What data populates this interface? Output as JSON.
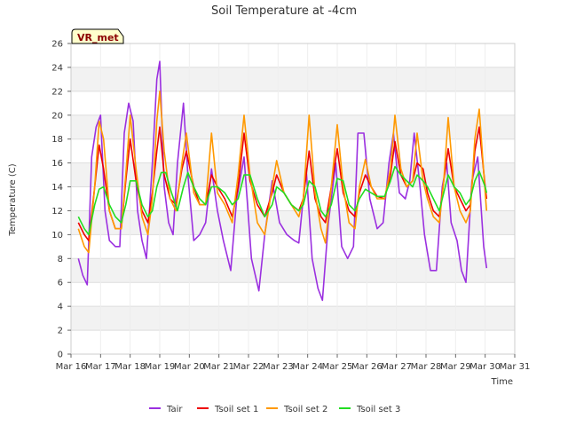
{
  "chart_data": {
    "type": "line",
    "title": "Soil Temperature at -4cm",
    "xlabel": "Time",
    "ylabel": "Temperature (C)",
    "badge": "VR_met",
    "xlim": [
      0,
      15
    ],
    "ylim": [
      0,
      26
    ],
    "grid": "horizontal bands",
    "legend": "bottom",
    "x_ticks": [
      "Mar 16",
      "Mar 17",
      "Mar 18",
      "Mar 19",
      "Mar 20",
      "Mar 21",
      "Mar 22",
      "Mar 23",
      "Mar 24",
      "Mar 25",
      "Mar 26",
      "Mar 27",
      "Mar 28",
      "Mar 29",
      "Mar 30",
      "Mar 31"
    ],
    "y_ticks": [
      0,
      2,
      4,
      6,
      8,
      10,
      12,
      14,
      16,
      18,
      20,
      22,
      24,
      26
    ],
    "series": [
      {
        "name": "Tair",
        "color": "#9b30e0",
        "points": [
          [
            0.25,
            8
          ],
          [
            0.4,
            6.6
          ],
          [
            0.55,
            5.8
          ],
          [
            0.7,
            16.5
          ],
          [
            0.85,
            19
          ],
          [
            1.0,
            20
          ],
          [
            1.15,
            12
          ],
          [
            1.3,
            9.5
          ],
          [
            1.5,
            9
          ],
          [
            1.65,
            9
          ],
          [
            1.8,
            18.5
          ],
          [
            1.95,
            21
          ],
          [
            2.1,
            19.5
          ],
          [
            2.25,
            12
          ],
          [
            2.4,
            9.5
          ],
          [
            2.55,
            8
          ],
          [
            2.75,
            16
          ],
          [
            2.9,
            23
          ],
          [
            3.0,
            24.5
          ],
          [
            3.15,
            14
          ],
          [
            3.3,
            11
          ],
          [
            3.45,
            10
          ],
          [
            3.6,
            16
          ],
          [
            3.8,
            21
          ],
          [
            3.95,
            15
          ],
          [
            4.15,
            9.5
          ],
          [
            4.35,
            10
          ],
          [
            4.55,
            11
          ],
          [
            4.75,
            15.5
          ],
          [
            4.95,
            12
          ],
          [
            5.15,
            9.5
          ],
          [
            5.4,
            7
          ],
          [
            5.6,
            13
          ],
          [
            5.85,
            16.5
          ],
          [
            6.1,
            8
          ],
          [
            6.35,
            5.3
          ],
          [
            6.55,
            10
          ],
          [
            6.8,
            14.5
          ],
          [
            7.05,
            11
          ],
          [
            7.3,
            10
          ],
          [
            7.55,
            9.5
          ],
          [
            7.7,
            9.3
          ],
          [
            7.95,
            15.5
          ],
          [
            8.15,
            8
          ],
          [
            8.35,
            5.5
          ],
          [
            8.5,
            4.5
          ],
          [
            8.7,
            11
          ],
          [
            8.95,
            16
          ],
          [
            9.15,
            9
          ],
          [
            9.35,
            8
          ],
          [
            9.55,
            9
          ],
          [
            9.7,
            18.5
          ],
          [
            9.9,
            18.5
          ],
          [
            10.1,
            13
          ],
          [
            10.35,
            10.5
          ],
          [
            10.55,
            11
          ],
          [
            10.75,
            16
          ],
          [
            10.9,
            18.5
          ],
          [
            11.1,
            13.5
          ],
          [
            11.3,
            13
          ],
          [
            11.45,
            14.5
          ],
          [
            11.6,
            18.5
          ],
          [
            11.8,
            14
          ],
          [
            11.95,
            10
          ],
          [
            12.15,
            7
          ],
          [
            12.35,
            7
          ],
          [
            12.55,
            14
          ],
          [
            12.7,
            16
          ],
          [
            12.85,
            11
          ],
          [
            13.05,
            9.5
          ],
          [
            13.2,
            7
          ],
          [
            13.35,
            6
          ],
          [
            13.55,
            14.5
          ],
          [
            13.75,
            16.5
          ],
          [
            13.95,
            9
          ],
          [
            14.05,
            7.2
          ]
        ]
      },
      {
        "name": "Tsoil set 1",
        "color": "#ee0000",
        "points": [
          [
            0.25,
            11
          ],
          [
            0.45,
            10
          ],
          [
            0.6,
            9.5
          ],
          [
            0.8,
            14
          ],
          [
            0.95,
            17.5
          ],
          [
            1.1,
            15.5
          ],
          [
            1.3,
            12
          ],
          [
            1.5,
            10.5
          ],
          [
            1.7,
            10.5
          ],
          [
            1.85,
            14.5
          ],
          [
            2.0,
            18
          ],
          [
            2.2,
            14.5
          ],
          [
            2.4,
            12
          ],
          [
            2.6,
            11
          ],
          [
            2.75,
            13.5
          ],
          [
            2.9,
            17
          ],
          [
            3.0,
            19
          ],
          [
            3.15,
            15
          ],
          [
            3.35,
            13
          ],
          [
            3.55,
            12.5
          ],
          [
            3.75,
            15.5
          ],
          [
            3.9,
            17
          ],
          [
            4.15,
            14
          ],
          [
            4.35,
            12.5
          ],
          [
            4.55,
            12.5
          ],
          [
            4.75,
            15
          ],
          [
            4.95,
            14
          ],
          [
            5.2,
            13
          ],
          [
            5.45,
            11.5
          ],
          [
            5.65,
            14
          ],
          [
            5.85,
            18.5
          ],
          [
            6.05,
            14.5
          ],
          [
            6.3,
            12.5
          ],
          [
            6.55,
            11.5
          ],
          [
            6.8,
            13.5
          ],
          [
            6.95,
            15
          ],
          [
            7.2,
            13.5
          ],
          [
            7.45,
            12.5
          ],
          [
            7.7,
            12
          ],
          [
            7.85,
            13
          ],
          [
            8.05,
            17
          ],
          [
            8.25,
            13
          ],
          [
            8.45,
            11.5
          ],
          [
            8.6,
            11
          ],
          [
            8.8,
            14
          ],
          [
            9.0,
            17.2
          ],
          [
            9.2,
            13.5
          ],
          [
            9.4,
            12
          ],
          [
            9.6,
            11.5
          ],
          [
            9.75,
            13.5
          ],
          [
            9.95,
            15
          ],
          [
            10.15,
            14
          ],
          [
            10.35,
            13.2
          ],
          [
            10.6,
            13
          ],
          [
            10.8,
            15
          ],
          [
            10.95,
            17.8
          ],
          [
            11.15,
            15
          ],
          [
            11.35,
            14
          ],
          [
            11.55,
            14.5
          ],
          [
            11.7,
            16
          ],
          [
            11.9,
            15.5
          ],
          [
            12.05,
            13.5
          ],
          [
            12.25,
            12
          ],
          [
            12.45,
            11.5
          ],
          [
            12.6,
            14.5
          ],
          [
            12.75,
            17.2
          ],
          [
            12.95,
            14
          ],
          [
            13.15,
            13
          ],
          [
            13.35,
            12
          ],
          [
            13.5,
            12.5
          ],
          [
            13.65,
            17
          ],
          [
            13.8,
            19
          ],
          [
            14.0,
            14
          ],
          [
            14.05,
            13
          ]
        ]
      },
      {
        "name": "Tsoil set 2",
        "color": "#ff9900",
        "points": [
          [
            0.25,
            10.5
          ],
          [
            0.45,
            9
          ],
          [
            0.6,
            8.5
          ],
          [
            0.8,
            14
          ],
          [
            0.95,
            19.5
          ],
          [
            1.1,
            18
          ],
          [
            1.3,
            12
          ],
          [
            1.5,
            10.5
          ],
          [
            1.7,
            10.5
          ],
          [
            1.85,
            15
          ],
          [
            2.0,
            20
          ],
          [
            2.2,
            15.5
          ],
          [
            2.4,
            11.5
          ],
          [
            2.6,
            10
          ],
          [
            2.75,
            13
          ],
          [
            2.9,
            19.5
          ],
          [
            3.0,
            22
          ],
          [
            3.15,
            17
          ],
          [
            3.35,
            13
          ],
          [
            3.55,
            12
          ],
          [
            3.75,
            16
          ],
          [
            3.9,
            18.5
          ],
          [
            4.15,
            13.5
          ],
          [
            4.35,
            12.5
          ],
          [
            4.55,
            12.5
          ],
          [
            4.75,
            18.5
          ],
          [
            4.95,
            13.5
          ],
          [
            5.2,
            12.5
          ],
          [
            5.45,
            11
          ],
          [
            5.65,
            15
          ],
          [
            5.85,
            20
          ],
          [
            6.05,
            15
          ],
          [
            6.3,
            11
          ],
          [
            6.55,
            10
          ],
          [
            6.8,
            14
          ],
          [
            6.95,
            16.2
          ],
          [
            7.2,
            13.5
          ],
          [
            7.45,
            12.5
          ],
          [
            7.7,
            11.5
          ],
          [
            7.85,
            13
          ],
          [
            8.05,
            20
          ],
          [
            8.25,
            13.5
          ],
          [
            8.45,
            10.5
          ],
          [
            8.6,
            9.3
          ],
          [
            8.8,
            14
          ],
          [
            9.0,
            19.2
          ],
          [
            9.2,
            14
          ],
          [
            9.4,
            11
          ],
          [
            9.6,
            10.5
          ],
          [
            9.75,
            14
          ],
          [
            9.95,
            16.3
          ],
          [
            10.15,
            14
          ],
          [
            10.35,
            13
          ],
          [
            10.6,
            13
          ],
          [
            10.8,
            15.5
          ],
          [
            10.95,
            20
          ],
          [
            11.15,
            15.5
          ],
          [
            11.35,
            14
          ],
          [
            11.55,
            14.5
          ],
          [
            11.7,
            18.5
          ],
          [
            11.9,
            14.5
          ],
          [
            12.05,
            13
          ],
          [
            12.25,
            11.5
          ],
          [
            12.45,
            11
          ],
          [
            12.6,
            14.5
          ],
          [
            12.75,
            19.8
          ],
          [
            12.95,
            14
          ],
          [
            13.15,
            12
          ],
          [
            13.35,
            11
          ],
          [
            13.5,
            12
          ],
          [
            13.65,
            18
          ],
          [
            13.8,
            20.5
          ],
          [
            14.0,
            13.5
          ],
          [
            14.05,
            12
          ]
        ]
      },
      {
        "name": "Tsoil set 3",
        "color": "#22dd22",
        "points": [
          [
            0.25,
            11.5
          ],
          [
            0.45,
            10.5
          ],
          [
            0.6,
            10
          ],
          [
            0.8,
            12.5
          ],
          [
            0.95,
            13.8
          ],
          [
            1.1,
            14
          ],
          [
            1.3,
            12.5
          ],
          [
            1.5,
            11.5
          ],
          [
            1.7,
            11
          ],
          [
            1.85,
            12.5
          ],
          [
            2.0,
            14.5
          ],
          [
            2.2,
            14.5
          ],
          [
            2.4,
            12.5
          ],
          [
            2.6,
            11.5
          ],
          [
            2.75,
            12
          ],
          [
            2.9,
            14
          ],
          [
            3.05,
            15.2
          ],
          [
            3.2,
            15.2
          ],
          [
            3.4,
            13.5
          ],
          [
            3.6,
            12
          ],
          [
            3.8,
            14
          ],
          [
            3.95,
            15.2
          ],
          [
            4.15,
            14
          ],
          [
            4.35,
            13
          ],
          [
            4.55,
            12.5
          ],
          [
            4.75,
            14
          ],
          [
            4.95,
            14
          ],
          [
            5.2,
            13.5
          ],
          [
            5.45,
            12.5
          ],
          [
            5.65,
            13
          ],
          [
            5.85,
            15
          ],
          [
            6.05,
            15
          ],
          [
            6.3,
            13
          ],
          [
            6.55,
            11.5
          ],
          [
            6.8,
            12.5
          ],
          [
            6.95,
            14
          ],
          [
            7.2,
            13.5
          ],
          [
            7.45,
            12.5
          ],
          [
            7.7,
            12
          ],
          [
            7.85,
            12.5
          ],
          [
            8.05,
            14.5
          ],
          [
            8.25,
            14
          ],
          [
            8.45,
            12
          ],
          [
            8.6,
            11.5
          ],
          [
            8.8,
            12.5
          ],
          [
            9.0,
            14.7
          ],
          [
            9.2,
            14.5
          ],
          [
            9.4,
            12.5
          ],
          [
            9.6,
            12
          ],
          [
            9.75,
            13
          ],
          [
            9.95,
            13.8
          ],
          [
            10.15,
            13.5
          ],
          [
            10.35,
            13.2
          ],
          [
            10.6,
            13.2
          ],
          [
            10.8,
            14.5
          ],
          [
            10.95,
            15.7
          ],
          [
            11.15,
            15
          ],
          [
            11.35,
            14.5
          ],
          [
            11.55,
            14
          ],
          [
            11.7,
            15
          ],
          [
            11.9,
            14.5
          ],
          [
            12.05,
            14
          ],
          [
            12.25,
            13
          ],
          [
            12.45,
            12
          ],
          [
            12.6,
            13.5
          ],
          [
            12.75,
            15
          ],
          [
            12.95,
            14
          ],
          [
            13.15,
            13.5
          ],
          [
            13.35,
            12.5
          ],
          [
            13.5,
            13
          ],
          [
            13.65,
            14.5
          ],
          [
            13.8,
            15.3
          ],
          [
            14.0,
            14
          ],
          [
            14.05,
            13.5
          ]
        ]
      }
    ]
  }
}
